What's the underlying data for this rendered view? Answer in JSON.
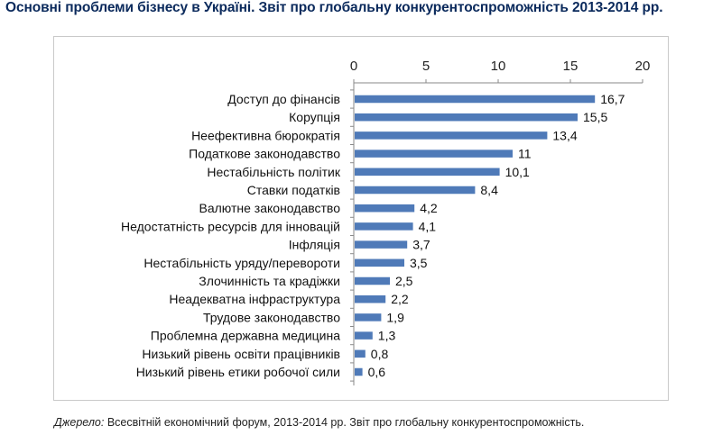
{
  "header": {
    "title": "Основні проблеми бізнесу в Україні. Звіт про глобальну конкурентоспроможність 2013-2014 рр."
  },
  "source": {
    "label": "Джерело:",
    "text": "Всесвітній економічний форум, 2013-2014 рр. Звіт про глобальну конкурентоспроможність."
  },
  "colors": {
    "bar": "#4f7ab8",
    "axis": "#8a8a8a",
    "frame": "#c9c9c9"
  },
  "chart_data": {
    "type": "bar",
    "orientation": "horizontal",
    "title": "Основні проблеми бізнесу в Україні. Звіт про глобальну конкурентоспроможність 2013-2014 рр.",
    "xlabel": "",
    "ylabel": "",
    "xlim": [
      0,
      20
    ],
    "xticks": [
      0,
      5,
      10,
      15,
      20
    ],
    "xtick_labels": [
      "0",
      "5",
      "10",
      "15",
      "20"
    ],
    "axis_position": "top",
    "grid": false,
    "categories": [
      "Доступ до фінансів",
      "Корупція",
      "Неефективна бюрократія",
      "Податкове законодавство",
      "Нестабільність політик",
      "Ставки податків",
      "Валютне законодавство",
      "Недостатність ресурсів для інновацій",
      "Інфляція",
      "Нестабільність уряду/перевороти",
      "Злочинність та крадіжки",
      "Неадекватна інфраструктура",
      "Трудове законодавство",
      "Проблемна державна медицина",
      "Низький рівень освіти працівників",
      "Низький рівень етики робочої сили"
    ],
    "values": [
      16.7,
      15.5,
      13.4,
      11,
      10.1,
      8.4,
      4.2,
      4.1,
      3.7,
      3.5,
      2.5,
      2.2,
      1.9,
      1.3,
      0.8,
      0.6
    ],
    "value_labels": [
      "16,7",
      "15,5",
      "13,4",
      "11",
      "10,1",
      "8,4",
      "4,2",
      "4,1",
      "3,7",
      "3,5",
      "2,5",
      "2,2",
      "1,9",
      "1,3",
      "0,8",
      "0,6"
    ]
  }
}
